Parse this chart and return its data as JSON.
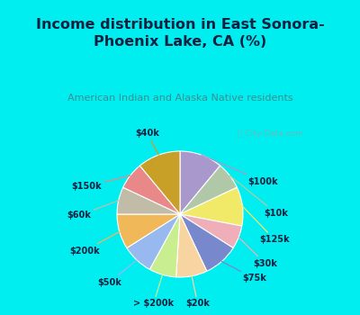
{
  "title": "Income distribution in East Sonora-\nPhoenix Lake, CA (%)",
  "subtitle": "American Indian and Alaska Native residents",
  "watermark": "ⓘ City-Data.com",
  "labels": [
    "$100k",
    "$10k",
    "$125k",
    "$30k",
    "$75k",
    "$20k",
    "> $200k",
    "$50k",
    "$200k",
    "$60k",
    "$150k",
    "$40k"
  ],
  "values": [
    11,
    7,
    10,
    6,
    9,
    8,
    7,
    8,
    9,
    7,
    7,
    11
  ],
  "colors": [
    "#a898cc",
    "#b0c8a8",
    "#f0ea68",
    "#f0aeb8",
    "#7888cc",
    "#f8d4a0",
    "#c8ee90",
    "#98b8f0",
    "#f0b858",
    "#c0bca8",
    "#e88888",
    "#c8a028"
  ],
  "bg_cyan": "#00eef0",
  "bg_chart": "#ddf5ee",
  "title_color": "#102040",
  "subtitle_color": "#3a9090",
  "label_color": "#102040",
  "title_fontsize": 11.5,
  "subtitle_fontsize": 8,
  "label_fontsize": 7
}
